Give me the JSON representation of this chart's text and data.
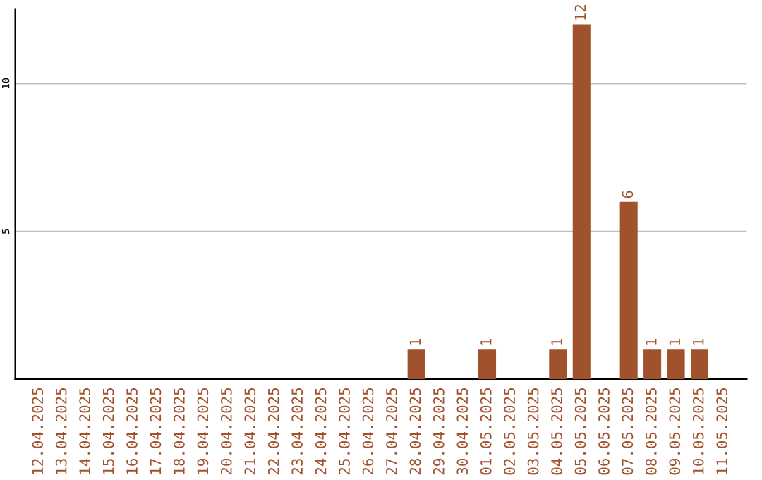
{
  "chart_data": {
    "type": "bar",
    "categories": [
      "12.04.2025",
      "13.04.2025",
      "14.04.2025",
      "15.04.2025",
      "16.04.2025",
      "17.04.2025",
      "18.04.2025",
      "19.04.2025",
      "20.04.2025",
      "21.04.2025",
      "22.04.2025",
      "23.04.2025",
      "24.04.2025",
      "25.04.2025",
      "26.04.2025",
      "27.04.2025",
      "28.04.2025",
      "29.04.2025",
      "30.04.2025",
      "01.05.2025",
      "02.05.2025",
      "03.05.2025",
      "04.05.2025",
      "05.05.2025",
      "06.05.2025",
      "07.05.2025",
      "08.05.2025",
      "09.05.2025",
      "10.05.2025",
      "11.05.2025"
    ],
    "values": [
      0,
      0,
      0,
      0,
      0,
      0,
      0,
      0,
      0,
      0,
      0,
      0,
      0,
      0,
      0,
      0,
      1,
      0,
      0,
      1,
      0,
      0,
      1,
      12,
      0,
      6,
      1,
      1,
      1,
      0
    ],
    "value_labels": [
      null,
      null,
      null,
      null,
      null,
      null,
      null,
      null,
      null,
      null,
      null,
      null,
      null,
      null,
      null,
      null,
      "1",
      null,
      null,
      "1",
      null,
      null,
      "1",
      "12",
      null,
      "6",
      "1",
      "1",
      "1",
      null
    ],
    "color": "#a0522d",
    "ylim": [
      0,
      12.5
    ],
    "yticks": [
      5,
      10
    ],
    "grid": "y"
  }
}
